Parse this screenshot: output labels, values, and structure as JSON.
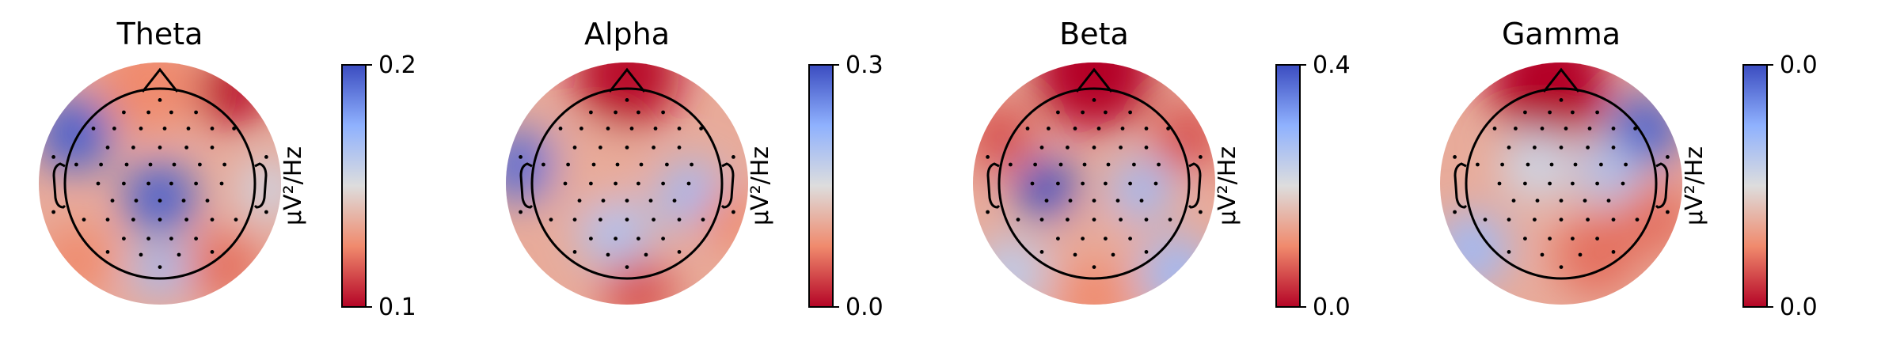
{
  "colors": {
    "colormap_low": "#b40426",
    "colormap_mid": "#dddddd",
    "colormap_high": "#3b4cc0",
    "outline": "#000000"
  },
  "chart_data": [
    {
      "type": "heatmap",
      "title": "Theta",
      "colorbar": {
        "min_label": "0.1",
        "max_label": "0.2",
        "unit": "µV²/Hz"
      },
      "hotspots": [
        {
          "x": -0.72,
          "y": -0.42,
          "v": 0.95,
          "r": 0.32
        },
        {
          "x": 0.0,
          "y": 0.12,
          "v": 0.95,
          "r": 0.3
        },
        {
          "x": 0.0,
          "y": 0.72,
          "v": 0.7,
          "r": 0.22
        },
        {
          "x": 0.62,
          "y": -0.78,
          "v": 0.02,
          "r": 0.3
        },
        {
          "x": -0.1,
          "y": -0.85,
          "v": 0.25,
          "r": 0.42
        },
        {
          "x": 0.55,
          "y": 0.7,
          "v": 0.2,
          "r": 0.3
        },
        {
          "x": -0.7,
          "y": 0.65,
          "v": 0.25,
          "r": 0.3
        },
        {
          "x": 0.92,
          "y": 0.05,
          "v": 0.55,
          "r": 0.25
        }
      ]
    },
    {
      "type": "heatmap",
      "title": "Alpha",
      "colorbar": {
        "min_label": "0.0",
        "max_label": "0.3",
        "unit": "µV²/Hz"
      },
      "hotspots": [
        {
          "x": 0.0,
          "y": -0.92,
          "v": 0.02,
          "r": 0.45
        },
        {
          "x": -0.88,
          "y": -0.15,
          "v": 0.92,
          "r": 0.3
        },
        {
          "x": 0.55,
          "y": 0.1,
          "v": 0.7,
          "r": 0.28
        },
        {
          "x": -0.1,
          "y": 0.4,
          "v": 0.65,
          "r": 0.3
        },
        {
          "x": -0.3,
          "y": -0.1,
          "v": 0.35,
          "r": 0.35
        },
        {
          "x": 0.1,
          "y": 0.92,
          "v": 0.15,
          "r": 0.3
        },
        {
          "x": 0.85,
          "y": 0.3,
          "v": 0.25,
          "r": 0.25
        }
      ]
    },
    {
      "type": "heatmap",
      "title": "Beta",
      "colorbar": {
        "min_label": "0.0",
        "max_label": "0.4",
        "unit": "µV²/Hz"
      },
      "hotspots": [
        {
          "x": 0.0,
          "y": -0.95,
          "v": 0.0,
          "r": 0.5
        },
        {
          "x": -0.4,
          "y": 0.05,
          "v": 1.0,
          "r": 0.25
        },
        {
          "x": 0.4,
          "y": 0.05,
          "v": 0.7,
          "r": 0.25
        },
        {
          "x": -0.7,
          "y": 0.75,
          "v": 0.6,
          "r": 0.3
        },
        {
          "x": 0.7,
          "y": 0.75,
          "v": 0.7,
          "r": 0.3
        },
        {
          "x": -0.8,
          "y": -0.4,
          "v": 0.15,
          "r": 0.3
        },
        {
          "x": 0.8,
          "y": -0.4,
          "v": 0.15,
          "r": 0.3
        },
        {
          "x": 0.0,
          "y": 0.55,
          "v": 0.35,
          "r": 0.3
        },
        {
          "x": 0.0,
          "y": 0.95,
          "v": 0.25,
          "r": 0.3
        }
      ]
    },
    {
      "type": "heatmap",
      "title": "Gamma",
      "colorbar": {
        "min_label": "0.0",
        "max_label": "0.0",
        "unit": "µV²/Hz"
      },
      "hotspots": [
        {
          "x": -0.1,
          "y": -0.85,
          "v": 0.0,
          "r": 0.5
        },
        {
          "x": 0.7,
          "y": -0.45,
          "v": 0.95,
          "r": 0.3
        },
        {
          "x": 0.4,
          "y": -0.1,
          "v": 0.65,
          "r": 0.25
        },
        {
          "x": -0.2,
          "y": -0.15,
          "v": 0.55,
          "r": 0.3
        },
        {
          "x": -0.75,
          "y": 0.55,
          "v": 0.7,
          "r": 0.3
        },
        {
          "x": 0.3,
          "y": 0.6,
          "v": 0.2,
          "r": 0.35
        },
        {
          "x": 0.8,
          "y": 0.3,
          "v": 0.2,
          "r": 0.3
        }
      ]
    }
  ]
}
